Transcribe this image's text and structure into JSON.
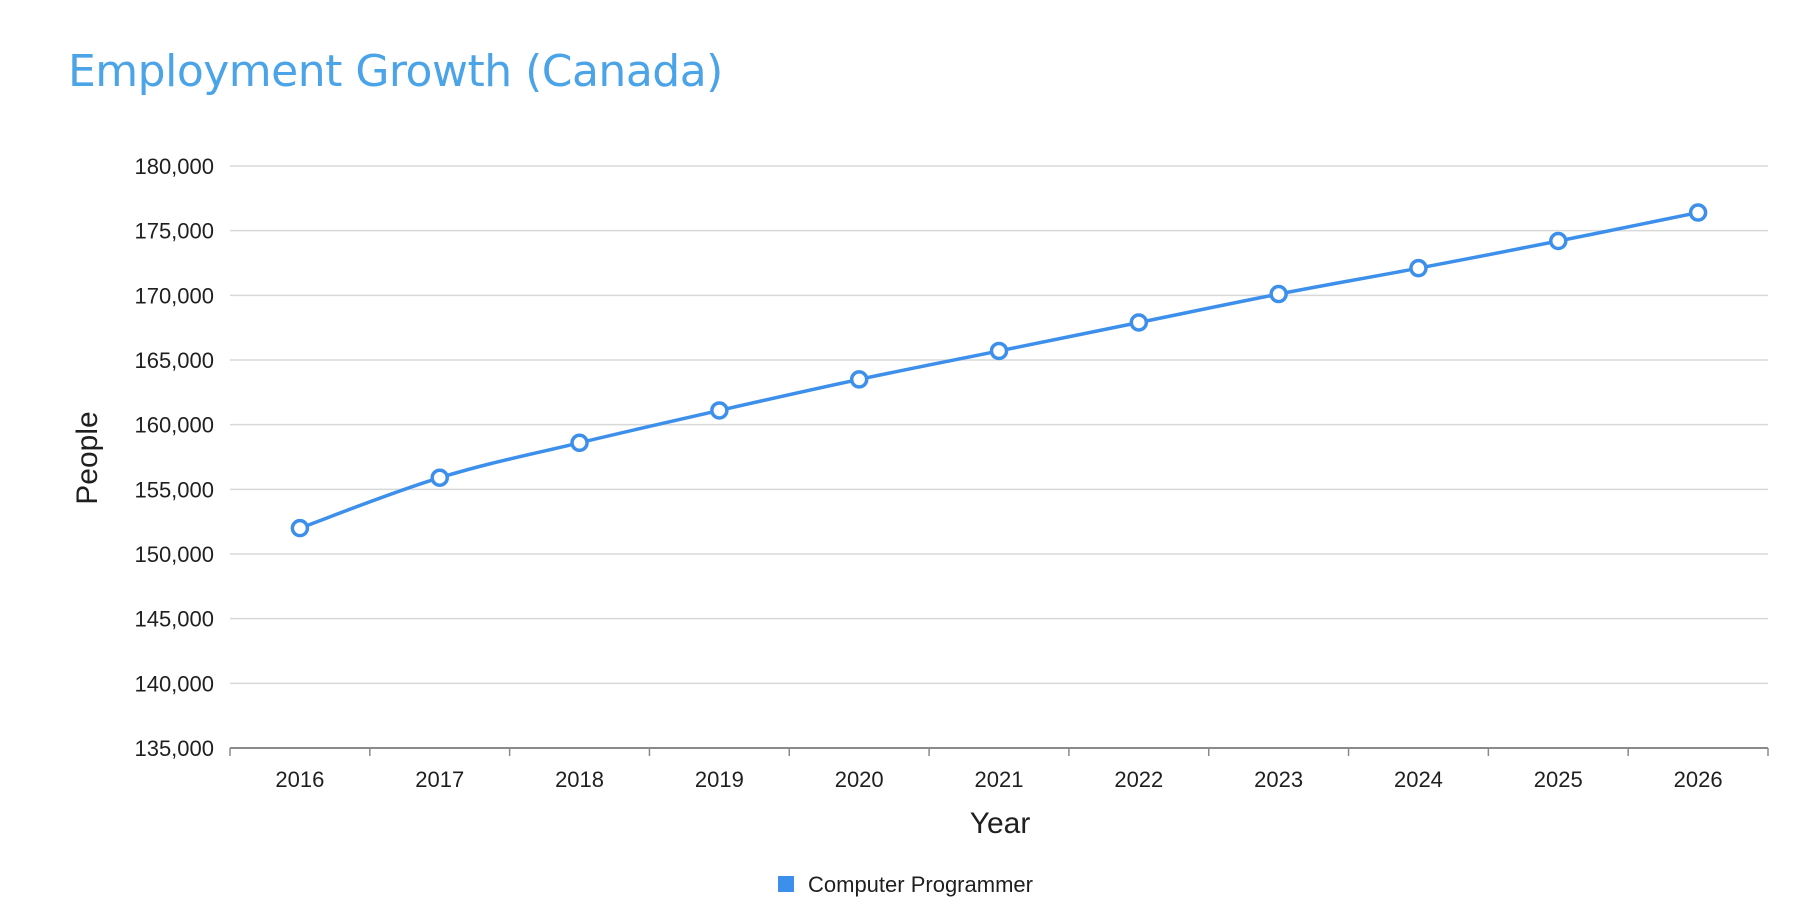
{
  "title": "Employment Growth (Canada)",
  "colors": {
    "title": "#4ba3e8",
    "series": "#3d8fec",
    "grid": "#d9d9d9",
    "axis": "#8a8a8a",
    "text": "#1f1f1f"
  },
  "chart_data": {
    "type": "line",
    "title": "Employment Growth (Canada)",
    "xlabel": "Year",
    "ylabel": "People",
    "x": [
      "2016",
      "2017",
      "2018",
      "2019",
      "2020",
      "2021",
      "2022",
      "2023",
      "2024",
      "2025",
      "2026"
    ],
    "ylim": [
      135000,
      180000
    ],
    "yticks": [
      135000,
      140000,
      145000,
      150000,
      155000,
      160000,
      165000,
      170000,
      175000,
      180000
    ],
    "ytick_labels": [
      "135,000",
      "140,000",
      "145,000",
      "150,000",
      "155,000",
      "160,000",
      "165,000",
      "170,000",
      "175,000",
      "180,000"
    ],
    "grid": true,
    "legend_position": "bottom-center",
    "series": [
      {
        "name": "Computer Programmer",
        "color": "#3d8fec",
        "marker": "hollow-circle",
        "values": [
          152000,
          155900,
          158600,
          161100,
          163500,
          165700,
          167900,
          170100,
          172100,
          174200,
          176400
        ]
      }
    ]
  }
}
